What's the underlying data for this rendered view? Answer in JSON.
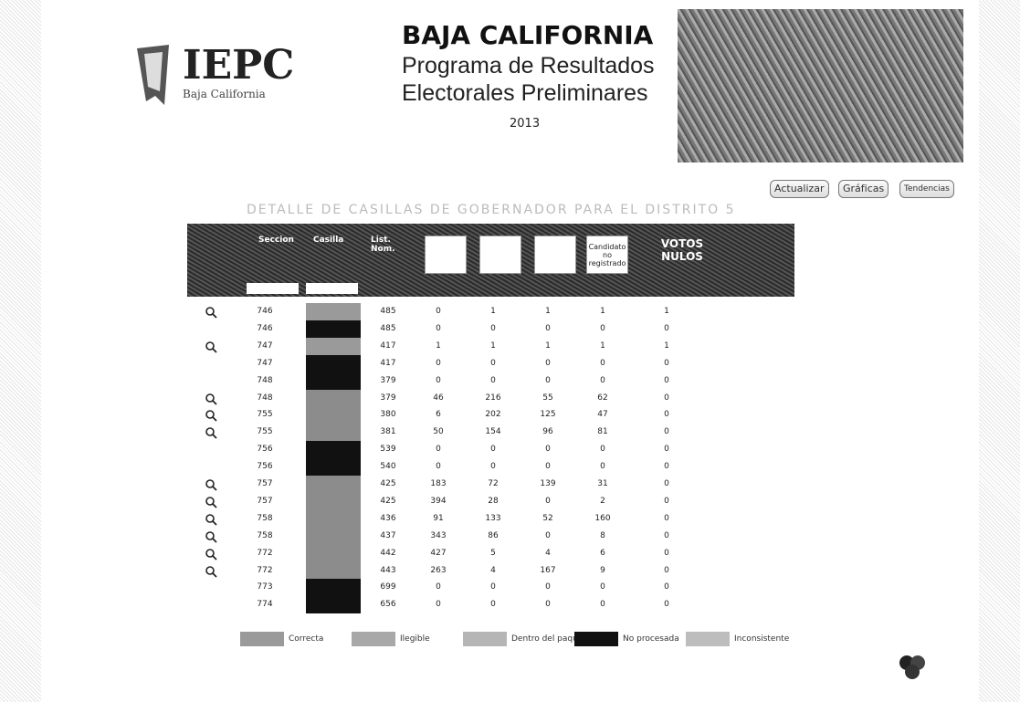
{
  "header": {
    "logo_title": "IEPC",
    "logo_subtitle": "Baja California",
    "state": "BAJA CALIFORNIA",
    "program_line1": "Programa de Resultados",
    "program_line2": "Electorales Preliminares",
    "year": "2013"
  },
  "buttons": [
    "Actualizar",
    "Gráficas",
    "Tendencias"
  ],
  "table": {
    "title": "DETALLE DE CASILLAS DE GOBERNADOR PARA EL DISTRITO 5",
    "headers": [
      "Seccion",
      "Casilla",
      "List. Nom.",
      "Candidato no registrado",
      "VOTOS NULOS"
    ],
    "rows": [
      {
        "mag": true,
        "casilla_color": "#9a9a9a",
        "cells": [
          746,
          485,
          0,
          1,
          1,
          1,
          1
        ]
      },
      {
        "mag": false,
        "casilla_color": "#111111",
        "cells": [
          746,
          485,
          0,
          0,
          0,
          0,
          0
        ]
      },
      {
        "mag": true,
        "casilla_color": "#9a9a9a",
        "cells": [
          747,
          417,
          1,
          1,
          1,
          1,
          1
        ]
      },
      {
        "mag": false,
        "casilla_color": "#111111",
        "cells": [
          747,
          417,
          0,
          0,
          0,
          0,
          0
        ]
      },
      {
        "mag": false,
        "casilla_color": "#111111",
        "cells": [
          748,
          379,
          0,
          0,
          0,
          0,
          0
        ]
      },
      {
        "mag": true,
        "casilla_color": "#8c8c8c",
        "cells": [
          748,
          379,
          46,
          216,
          55,
          62,
          0
        ]
      },
      {
        "mag": true,
        "casilla_color": "#8c8c8c",
        "cells": [
          755,
          380,
          6,
          202,
          125,
          47,
          0
        ]
      },
      {
        "mag": true,
        "casilla_color": "#8c8c8c",
        "cells": [
          755,
          381,
          50,
          154,
          96,
          81,
          0
        ]
      },
      {
        "mag": false,
        "casilla_color": "#111111",
        "cells": [
          756,
          539,
          0,
          0,
          0,
          0,
          0
        ]
      },
      {
        "mag": false,
        "casilla_color": "#111111",
        "cells": [
          756,
          540,
          0,
          0,
          0,
          0,
          0
        ]
      },
      {
        "mag": true,
        "casilla_color": "#8c8c8c",
        "cells": [
          757,
          425,
          183,
          72,
          139,
          31,
          0
        ]
      },
      {
        "mag": true,
        "casilla_color": "#8c8c8c",
        "cells": [
          757,
          425,
          394,
          28,
          0,
          2,
          0
        ]
      },
      {
        "mag": true,
        "casilla_color": "#8c8c8c",
        "cells": [
          758,
          436,
          91,
          133,
          52,
          160,
          0
        ]
      },
      {
        "mag": true,
        "casilla_color": "#8c8c8c",
        "cells": [
          758,
          437,
          343,
          86,
          0,
          8,
          0
        ]
      },
      {
        "mag": true,
        "casilla_color": "#8c8c8c",
        "cells": [
          772,
          442,
          427,
          5,
          4,
          6,
          0
        ]
      },
      {
        "mag": true,
        "casilla_color": "#8c8c8c",
        "cells": [
          772,
          443,
          263,
          4,
          167,
          9,
          0
        ]
      },
      {
        "mag": false,
        "casilla_color": "#111111",
        "cells": [
          773,
          699,
          0,
          0,
          0,
          0,
          0
        ]
      },
      {
        "mag": false,
        "casilla_color": "#111111",
        "cells": [
          774,
          656,
          0,
          0,
          0,
          0,
          0
        ]
      }
    ]
  },
  "legend": [
    {
      "label": "Correcta",
      "color": "#9a9a9a"
    },
    {
      "label": "Ilegible",
      "color": "#a8a8a8"
    },
    {
      "label": "Dentro del paquete",
      "color": "#b5b5b5"
    },
    {
      "label": "No procesada",
      "color": "#111111"
    },
    {
      "label": "Inconsistente",
      "color": "#bdbdbd"
    }
  ]
}
